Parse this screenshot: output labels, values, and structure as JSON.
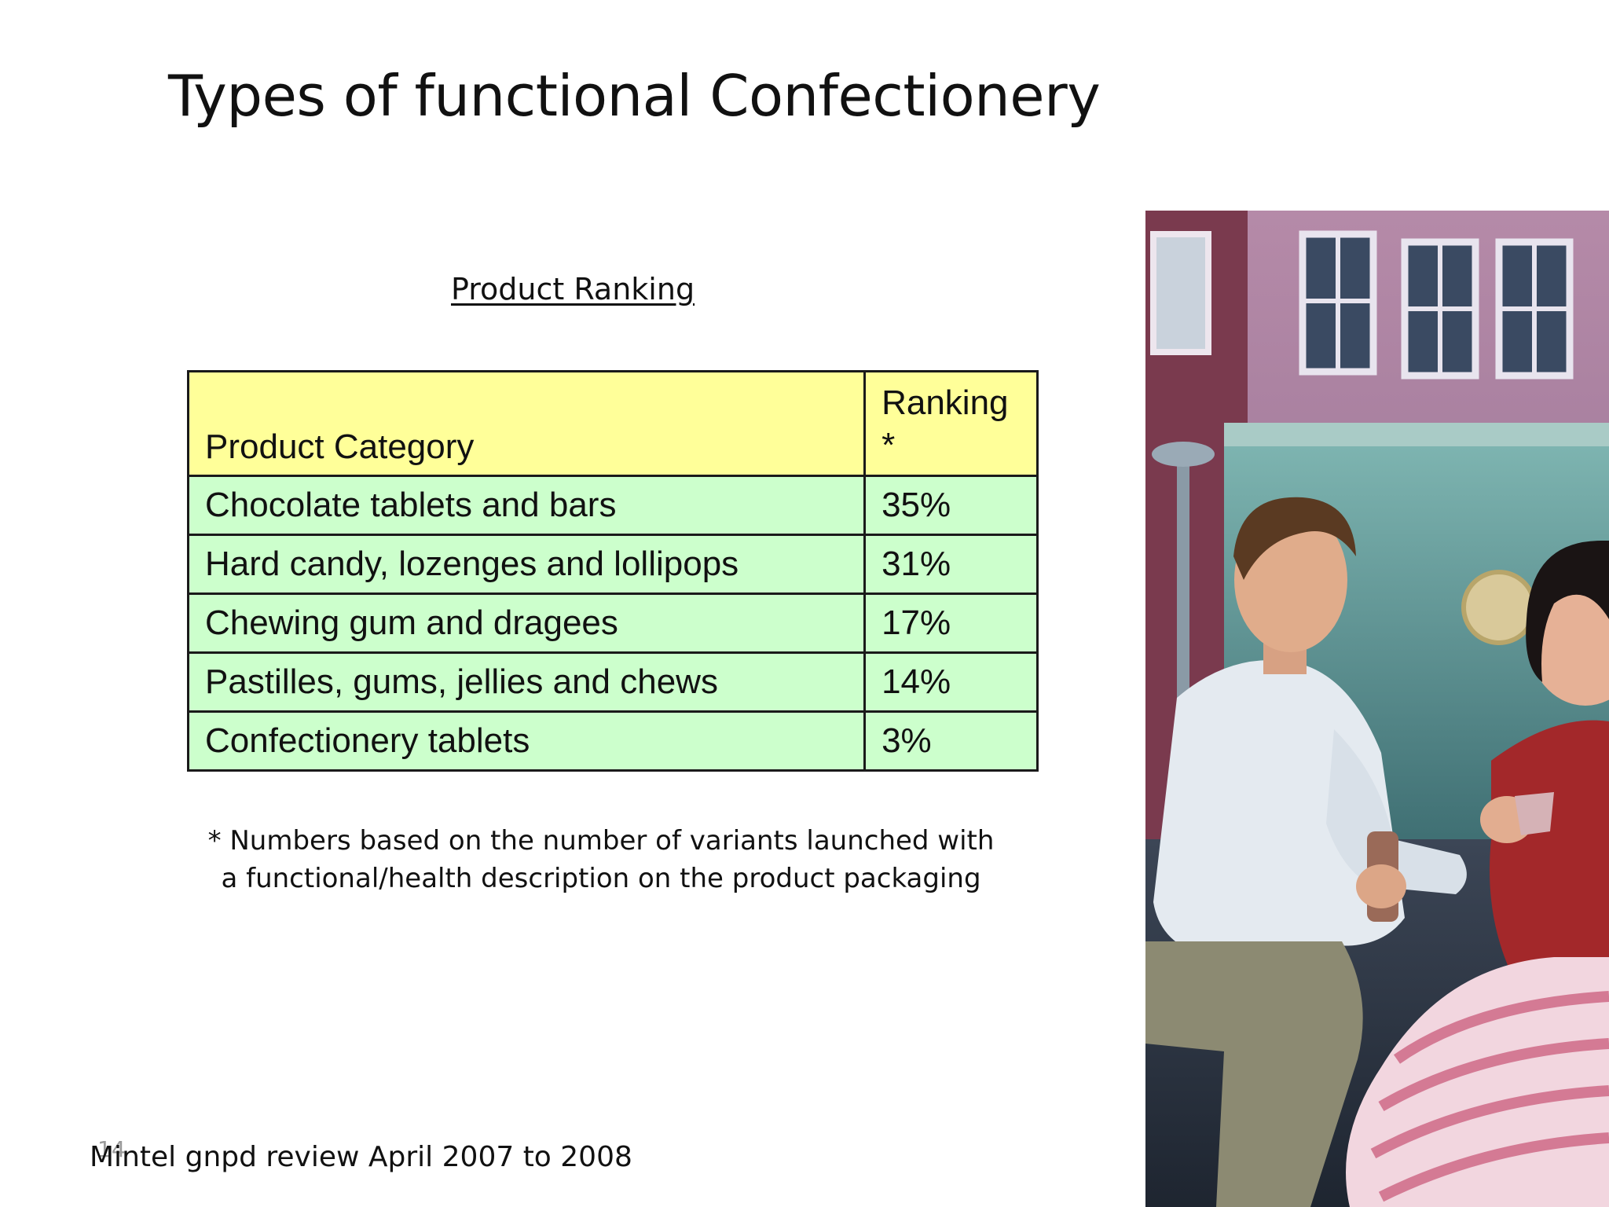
{
  "slide": {
    "title": "Types of functional Confectionery",
    "subtitle": "Product Ranking",
    "table": {
      "header": {
        "category": "Product Category",
        "ranking": "Ranking *"
      },
      "rows": [
        {
          "category": "Chocolate tablets and bars",
          "value": "35%"
        },
        {
          "category": "Hard candy, lozenges and lollipops",
          "value": "31%"
        },
        {
          "category": "Chewing gum and dragees",
          "value": "17%"
        },
        {
          "category": "Pastilles, gums, jellies and chews",
          "value": "14%"
        },
        {
          "category": "Confectionery tablets",
          "value": "3%"
        }
      ],
      "colors": {
        "header_bg": "#ffff99",
        "row_bg": "#ccffcc",
        "border": "#1a1a1a"
      }
    },
    "footnote": {
      "line1": "* Numbers based on the number of variants launched with",
      "line2": "a functional/health description on the product packaging"
    },
    "slide_number": "14",
    "source": "Mintel gnpd review April 2007 to 2008"
  }
}
